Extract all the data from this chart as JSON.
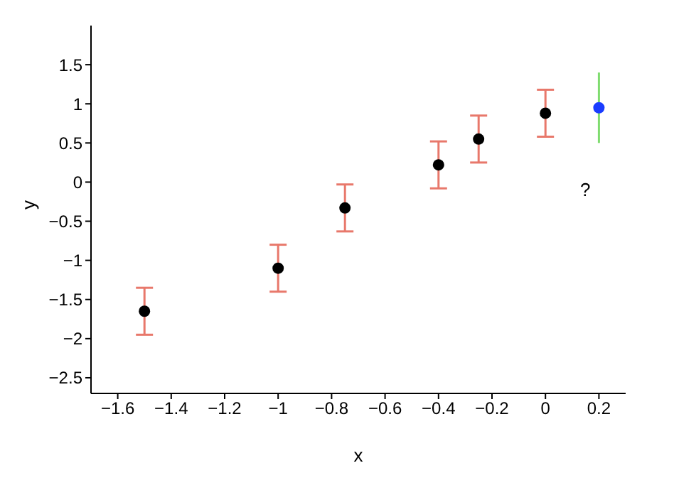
{
  "chart_data": {
    "type": "scatter",
    "xlabel": "x",
    "ylabel": "y",
    "series": [
      {
        "color": "#000000",
        "x": [
          -1.5,
          -1,
          -0.75,
          -0.4,
          -0.25,
          0
        ],
        "values": [
          -1.65,
          -1.1,
          -0.33,
          0.22,
          0.55,
          0.88
        ],
        "errors": [
          0.3,
          0.3,
          0.3,
          0.3,
          0.3,
          0.3
        ]
      },
      {
        "color": "#1a3cff",
        "x": [
          0.2
        ],
        "values": [
          0.95
        ],
        "errors": [
          [
            0.5,
            1.4
          ]
        ]
      }
    ],
    "xlim": [
      -1.7,
      0.3
    ],
    "xticks": [
      -1.6,
      -1.4,
      -1.2,
      -1,
      -0.8,
      -0.6,
      -0.4,
      -0.2,
      0,
      0.2
    ],
    "ylim": [
      -2.7,
      2.0
    ],
    "yticks": [
      -2.5,
      -2,
      -1.5,
      -1,
      -0.5,
      0,
      0.5,
      1,
      1.5
    ],
    "marker": "circle",
    "annotations": [
      "?"
    ]
  }
}
